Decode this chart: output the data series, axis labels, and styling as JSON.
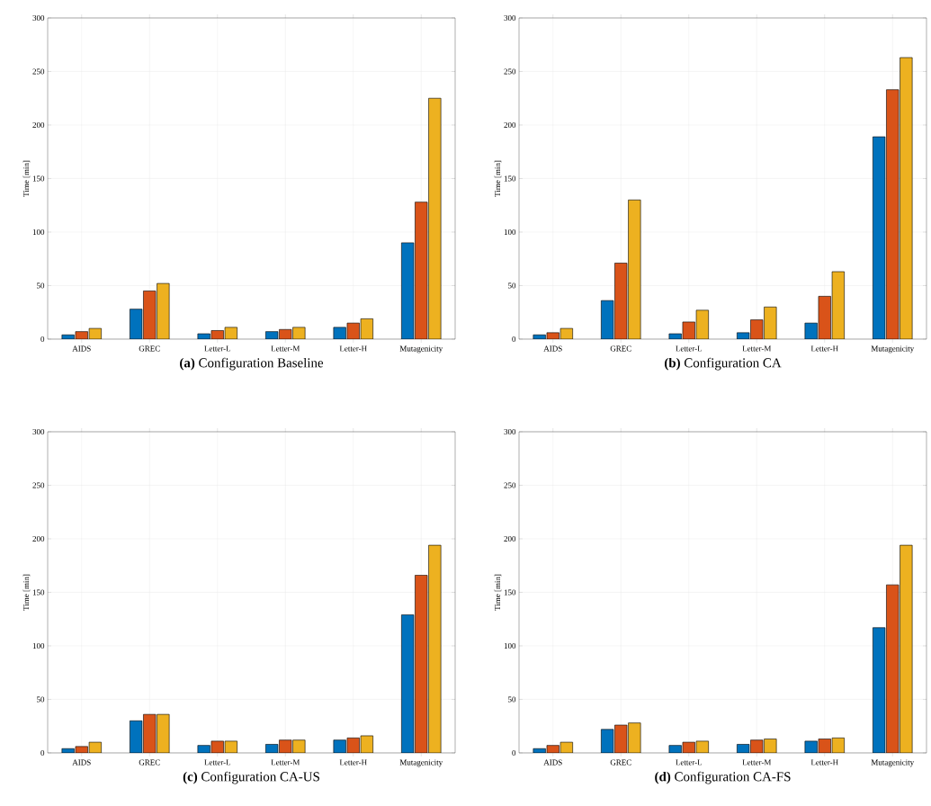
{
  "chart_data": [
    {
      "type": "bar",
      "title": "**(a)** Configuration Baseline",
      "ylabel": "Time [min]",
      "categories": [
        "AIDS",
        "GREC",
        "Letter-L",
        "Letter-M",
        "Letter-H",
        "Mutagenicity"
      ],
      "ylim": [
        0,
        300
      ],
      "yticks": [
        0,
        50,
        100,
        150,
        200,
        250,
        300
      ],
      "grid": true,
      "series": [
        {
          "color": "#0072bd",
          "values": [
            4,
            28,
            5,
            7,
            11,
            90
          ]
        },
        {
          "color": "#d95319",
          "values": [
            7,
            45,
            8,
            9,
            15,
            128
          ]
        },
        {
          "color": "#edb120",
          "values": [
            10,
            52,
            11,
            11,
            19,
            225
          ]
        }
      ]
    },
    {
      "type": "bar",
      "title": "**(b)** Configuration CA",
      "ylabel": "Time [min]",
      "categories": [
        "AIDS",
        "GREC",
        "Letter-L",
        "Letter-M",
        "Letter-H",
        "Mutagenicity"
      ],
      "ylim": [
        0,
        300
      ],
      "yticks": [
        0,
        50,
        100,
        150,
        200,
        250,
        300
      ],
      "grid": true,
      "series": [
        {
          "color": "#0072bd",
          "values": [
            4,
            36,
            5,
            6,
            15,
            189
          ]
        },
        {
          "color": "#d95319",
          "values": [
            6,
            71,
            16,
            18,
            40,
            233
          ]
        },
        {
          "color": "#edb120",
          "values": [
            10,
            130,
            27,
            30,
            63,
            263
          ]
        }
      ]
    },
    {
      "type": "bar",
      "title": "**(c)** Configuration CA-US",
      "ylabel": "Time [min]",
      "categories": [
        "AIDS",
        "GREC",
        "Letter-L",
        "Letter-M",
        "Letter-H",
        "Mutagenicity"
      ],
      "ylim": [
        0,
        300
      ],
      "yticks": [
        0,
        50,
        100,
        150,
        200,
        250,
        300
      ],
      "grid": true,
      "series": [
        {
          "color": "#0072bd",
          "values": [
            4,
            30,
            7,
            8,
            12,
            129
          ]
        },
        {
          "color": "#d95319",
          "values": [
            6,
            36,
            11,
            12,
            14,
            166
          ]
        },
        {
          "color": "#edb120",
          "values": [
            10,
            36,
            11,
            12,
            16,
            194
          ]
        }
      ]
    },
    {
      "type": "bar",
      "title": "**(d)** Configuration CA-FS",
      "ylabel": "Time [min]",
      "categories": [
        "AIDS",
        "GREC",
        "Letter-L",
        "Letter-M",
        "Letter-H",
        "Mutagenicity"
      ],
      "ylim": [
        0,
        300
      ],
      "yticks": [
        0,
        50,
        100,
        150,
        200,
        250,
        300
      ],
      "grid": true,
      "series": [
        {
          "color": "#0072bd",
          "values": [
            4,
            22,
            7,
            8,
            11,
            117
          ]
        },
        {
          "color": "#d95319",
          "values": [
            7,
            26,
            10,
            12,
            13,
            157
          ]
        },
        {
          "color": "#edb120",
          "values": [
            10,
            28,
            11,
            13,
            14,
            194
          ]
        }
      ]
    }
  ]
}
